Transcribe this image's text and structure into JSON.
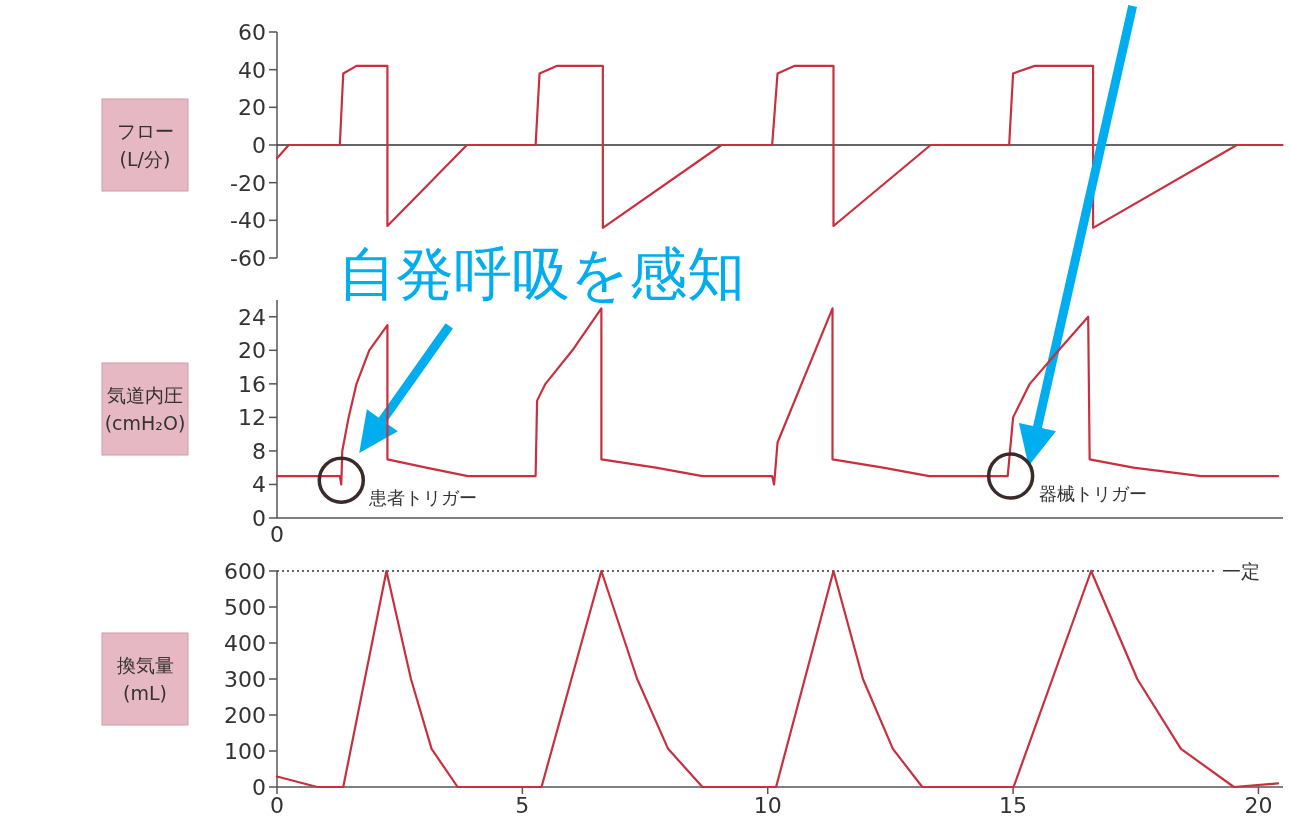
{
  "chart_data": [
    {
      "type": "line",
      "ylabel": "フロー\n(L/分)",
      "xlim": [
        0,
        20.5
      ],
      "ylim": [
        -60,
        60
      ],
      "yticks": [
        -60,
        -40,
        -20,
        0,
        20,
        40,
        60
      ],
      "tick_labels": "y",
      "grid": false,
      "ref_lines": [
        {
          "axis": "y",
          "value": 0,
          "color": "#333333"
        }
      ],
      "series": [
        {
          "color": "#c8303f",
          "x": [
            0,
            0.24,
            1.28,
            1.35,
            1.62,
            2.25,
            2.25,
            3.87,
            5.27,
            5.35,
            5.7,
            6.64,
            6.64,
            9.06,
            10.09,
            10.2,
            10.54,
            11.34,
            11.34,
            13.32,
            14.92,
            15.0,
            15.44,
            16.63,
            16.63,
            19.56,
            20.49
          ],
          "values": [
            -7,
            0,
            0,
            38,
            42,
            42,
            -43,
            0,
            0,
            38,
            42,
            42,
            -44,
            0,
            0,
            38,
            42,
            42,
            -43,
            0,
            0,
            38,
            42,
            42,
            -44,
            0,
            0
          ]
        }
      ]
    },
    {
      "type": "line",
      "ylabel": "気道内圧\n(cmH₂O)",
      "xlim": [
        0,
        20.5
      ],
      "ylim": [
        0,
        26
      ],
      "yticks": [
        0,
        4,
        8,
        12,
        16,
        20,
        24
      ],
      "grid": false,
      "annotations": [
        "0",
        {
          "text": "自発呼吸を感知",
          "x": 1.35,
          "y": 8
        },
        {
          "text": "患者トリガー",
          "x": 1.31,
          "y": 4.5
        },
        {
          "text": "器械トリガー",
          "x": 14.95,
          "y": 5
        }
      ],
      "series": [
        {
          "color": "#c8303f",
          "x": [
            0,
            1.28,
            1.31,
            1.33,
            1.46,
            1.62,
            1.88,
            2.25,
            2.25,
            3.04,
            3.89,
            5.27,
            5.3,
            5.47,
            6.02,
            6.61,
            6.61,
            7.72,
            8.67,
            10.09,
            10.13,
            10.2,
            11.32,
            11.32,
            12.35,
            13.29,
            14.89,
            15.0,
            15.34,
            15.93,
            16.53,
            16.56,
            17.45,
            18.83,
            20.4
          ],
          "values": [
            5,
            5,
            4,
            8,
            12,
            16,
            20,
            23,
            7,
            6,
            5,
            5,
            14,
            16,
            20,
            25,
            7,
            6,
            5,
            5,
            4,
            9,
            25,
            7,
            6,
            5,
            5,
            12,
            16,
            20,
            24,
            7,
            6,
            5,
            5
          ]
        }
      ]
    },
    {
      "type": "line",
      "ylabel": "換気量\n(mL)",
      "xlim": [
        0,
        20.5
      ],
      "xticks": [
        0,
        5,
        10,
        15,
        20
      ],
      "ylim": [
        0,
        600
      ],
      "yticks": [
        0,
        100,
        200,
        300,
        400,
        500,
        600
      ],
      "grid": false,
      "ref_lines": [
        {
          "axis": "y",
          "value": 600,
          "label": "一定",
          "line_style": "dotted",
          "color": "#333333"
        }
      ],
      "series": [
        {
          "color": "#c8303f",
          "x": [
            0,
            0.82,
            1.35,
            2.23,
            2.73,
            3.15,
            3.68,
            5.39,
            6.61,
            7.34,
            7.97,
            8.67,
            10.17,
            11.34,
            11.94,
            12.55,
            13.15,
            15.01,
            16.59,
            17.53,
            18.42,
            19.5,
            20.4
          ],
          "values": [
            29,
            0,
            0,
            600,
            300,
            106,
            0,
            0,
            600,
            300,
            106,
            0,
            0,
            600,
            300,
            106,
            0,
            0,
            600,
            300,
            106,
            0,
            10
          ]
        }
      ]
    }
  ]
}
